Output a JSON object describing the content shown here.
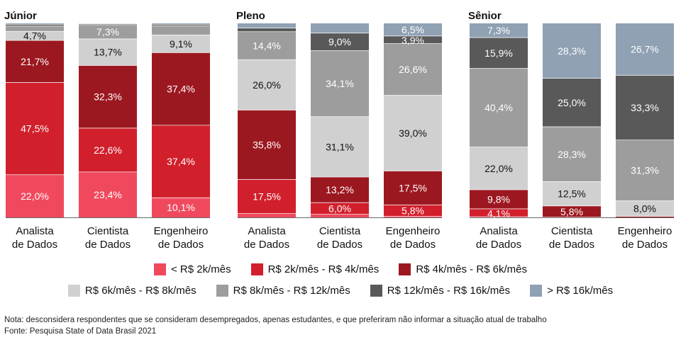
{
  "chart_data": {
    "type": "bar",
    "stacked": true,
    "panels": [
      {
        "title": "Júnior",
        "categories": [
          "Analista\nde Dados",
          "Cientista\nde Dados",
          "Engenheiro\nde Dados"
        ],
        "bars": [
          [
            22.0,
            47.5,
            21.7,
            4.7,
            2.7,
            0.9,
            0.5
          ],
          [
            23.4,
            22.6,
            32.3,
            13.7,
            7.3,
            0.5,
            0.2
          ],
          [
            10.1,
            37.4,
            37.4,
            9.1,
            4.7,
            0.8,
            0.5
          ]
        ],
        "labels": [
          [
            "22,0%",
            "47,5%",
            "21,7%",
            "4,7%",
            "",
            "",
            ""
          ],
          [
            "23,4%",
            "22,6%",
            "32,3%",
            "13,7%",
            "7,3%",
            "",
            ""
          ],
          [
            "10,1%",
            "37,4%",
            "37,4%",
            "9,1%",
            "",
            "",
            ""
          ]
        ]
      },
      {
        "title": "Pleno",
        "categories": [
          "Analista\nde Dados",
          "Cientista\nde Dados",
          "Engenheiro\nde Dados"
        ],
        "bars": [
          [
            2.0,
            17.5,
            35.8,
            26.0,
            14.4,
            1.9,
            2.4
          ],
          [
            1.6,
            6.0,
            13.2,
            31.1,
            34.1,
            9.0,
            5.0
          ],
          [
            0.6,
            5.8,
            17.5,
            39.0,
            26.6,
            3.9,
            6.5
          ]
        ],
        "labels": [
          [
            "",
            "17,5%",
            "35,8%",
            "26,0%",
            "14,4%",
            "",
            ""
          ],
          [
            "",
            "6,0%",
            "13,2%",
            "31,1%",
            "34,1%",
            "9,0%",
            ""
          ],
          [
            "",
            "5,8%",
            "17,5%",
            "39,0%",
            "26,6%",
            "3,9%",
            "6,5%"
          ]
        ]
      },
      {
        "title": "Sênior",
        "categories": [
          "Analista\nde Dados",
          "Cientista\nde Dados",
          "Engenheiro\nde Dados"
        ],
        "bars": [
          [
            0.3,
            4.1,
            9.8,
            22.0,
            40.4,
            15.9,
            7.3
          ],
          [
            0.0,
            0.1,
            5.8,
            12.5,
            28.3,
            25.0,
            28.3
          ],
          [
            0.0,
            0.0,
            0.5,
            8.0,
            31.3,
            33.3,
            26.7
          ]
        ],
        "labels": [
          [
            "",
            "4,1%",
            "9,8%",
            "22,0%",
            "40,4%",
            "15,9%",
            "7,3%"
          ],
          [
            "",
            "",
            "5,8%",
            "12,5%",
            "28,3%",
            "25,0%",
            "28,3%"
          ],
          [
            "",
            "",
            "",
            "8,0%",
            "31,3%",
            "33,3%",
            "26,7%"
          ]
        ]
      }
    ],
    "series": [
      {
        "name": "< R$ 2k/mês",
        "color": "#f0495e"
      },
      {
        "name": "R$ 2k/mês - R$ 4k/mês",
        "color": "#d21f2c"
      },
      {
        "name": "R$ 4k/mês - R$ 6k/mês",
        "color": "#9c1820"
      },
      {
        "name": "R$ 6k/mês - R$ 8k/mês",
        "color": "#d0d0d0"
      },
      {
        "name": "R$ 8k/mês - R$ 12k/mês",
        "color": "#9d9d9d"
      },
      {
        "name": "R$ 12k/mês - R$ 16k/mês",
        "color": "#595959"
      },
      {
        "name": "> R$ 16k/mês",
        "color": "#8fa1b3"
      }
    ],
    "label_colors": [
      "#ffffff",
      "#ffffff",
      "#ffffff",
      "#111111",
      "#ffffff",
      "#ffffff",
      "#ffffff"
    ],
    "ylim": [
      0,
      100
    ],
    "legend_position": "bottom"
  },
  "notes": {
    "line1": "Nota: desconsidera respondentes que se consideram desempregados, apenas estudantes, e que preferiram não informar a situação atual de trabalho",
    "line2": "Fonte: Pesquisa State of Data Brasil 2021"
  }
}
